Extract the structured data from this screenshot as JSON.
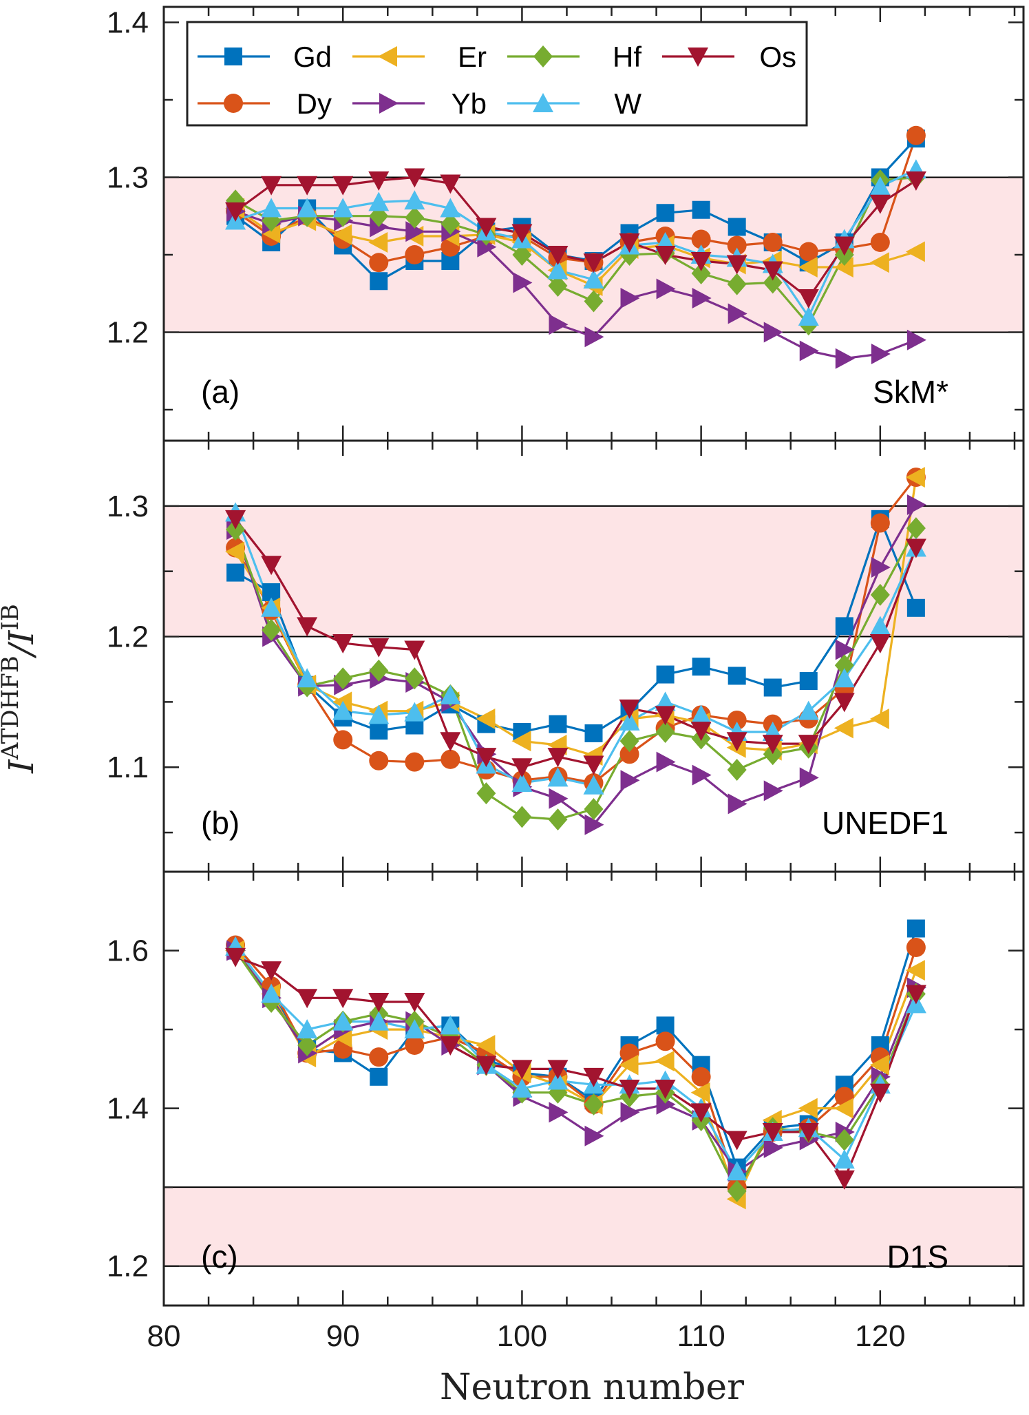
{
  "figure": {
    "xlabel": "Neutron number",
    "ylabel": {
      "numerator": "I",
      "numerator_sup": "ATDHFB",
      "slash": "/",
      "denominator": "I",
      "denominator_sup": "IB"
    }
  },
  "legend": [
    {
      "name": "Gd",
      "color": "#0072BD",
      "marker": "square"
    },
    {
      "name": "Dy",
      "color": "#D95319",
      "marker": "circle"
    },
    {
      "name": "Er",
      "color": "#EDB120",
      "marker": "triangle-left"
    },
    {
      "name": "Yb",
      "color": "#7E2F8E",
      "marker": "triangle-right"
    },
    {
      "name": "Hf",
      "color": "#77AC30",
      "marker": "diamond"
    },
    {
      "name": "W",
      "color": "#4DBEEE",
      "marker": "triangle-up"
    },
    {
      "name": "Os",
      "color": "#A2142F",
      "marker": "triangle-down"
    }
  ],
  "chart_data": [
    {
      "type": "line",
      "panel": "(a)",
      "label": "SkM*",
      "xlim": [
        80,
        128
      ],
      "ylim": [
        1.13,
        1.41
      ],
      "yticks": [
        1.2,
        1.3,
        1.4
      ],
      "ytick_labels": [
        "1.2",
        "1.3",
        "1.4"
      ],
      "band": [
        1.2,
        1.3
      ],
      "x": [
        84,
        86,
        88,
        90,
        92,
        94,
        96,
        98,
        100,
        102,
        104,
        106,
        108,
        110,
        112,
        114,
        116,
        118,
        120,
        122
      ],
      "series": [
        {
          "name": "Gd",
          "values": [
            1.275,
            1.258,
            1.28,
            1.256,
            1.233,
            1.246,
            1.246,
            1.265,
            1.268,
            1.25,
            1.246,
            1.264,
            1.277,
            1.279,
            1.268,
            1.258,
            1.245,
            1.258,
            1.3,
            1.325
          ]
        },
        {
          "name": "Dy",
          "values": [
            1.278,
            1.262,
            1.275,
            1.26,
            1.245,
            1.25,
            1.255,
            1.262,
            1.262,
            1.248,
            1.245,
            1.258,
            1.262,
            1.26,
            1.256,
            1.258,
            1.252,
            1.254,
            1.258,
            1.327
          ]
        },
        {
          "name": "Er",
          "values": [
            1.28,
            1.264,
            1.272,
            1.263,
            1.258,
            1.262,
            1.262,
            1.263,
            1.258,
            1.24,
            1.23,
            1.254,
            1.256,
            1.248,
            1.244,
            1.246,
            1.242,
            1.242,
            1.245,
            1.252
          ]
        },
        {
          "name": "Yb",
          "values": [
            1.278,
            1.27,
            1.275,
            1.272,
            1.268,
            1.265,
            1.265,
            1.255,
            1.232,
            1.205,
            1.197,
            1.222,
            1.228,
            1.222,
            1.212,
            1.2,
            1.188,
            1.183,
            1.186,
            1.195
          ]
        },
        {
          "name": "Hf",
          "values": [
            1.285,
            1.272,
            1.275,
            1.275,
            1.275,
            1.274,
            1.27,
            1.263,
            1.25,
            1.23,
            1.22,
            1.25,
            1.251,
            1.238,
            1.231,
            1.232,
            1.205,
            1.25,
            1.298,
            1.3
          ]
        },
        {
          "name": "W",
          "values": [
            1.272,
            1.28,
            1.28,
            1.28,
            1.284,
            1.285,
            1.28,
            1.265,
            1.26,
            1.24,
            1.234,
            1.256,
            1.258,
            1.25,
            1.248,
            1.244,
            1.21,
            1.26,
            1.294,
            1.305
          ]
        },
        {
          "name": "Os",
          "values": [
            1.278,
            1.295,
            1.295,
            1.295,
            1.298,
            1.3,
            1.296,
            1.268,
            1.264,
            1.25,
            1.245,
            1.258,
            1.25,
            1.246,
            1.244,
            1.24,
            1.222,
            1.256,
            1.283,
            1.298
          ]
        }
      ]
    },
    {
      "type": "line",
      "panel": "(b)",
      "label": "UNEDF1",
      "xlim": [
        80,
        128
      ],
      "ylim": [
        1.02,
        1.35
      ],
      "yticks": [
        1.1,
        1.2,
        1.3
      ],
      "ytick_labels": [
        "1.1",
        "1.2",
        "1.3"
      ],
      "band": [
        1.2,
        1.3
      ],
      "x": [
        84,
        86,
        88,
        90,
        92,
        94,
        96,
        98,
        100,
        102,
        104,
        106,
        108,
        110,
        112,
        114,
        116,
        118,
        120,
        122
      ],
      "series": [
        {
          "name": "Gd",
          "values": [
            1.249,
            1.234,
            1.163,
            1.138,
            1.128,
            1.132,
            1.148,
            1.133,
            1.127,
            1.133,
            1.126,
            1.143,
            1.171,
            1.177,
            1.17,
            1.161,
            1.166,
            1.208,
            1.29,
            1.222
          ]
        },
        {
          "name": "Dy",
          "values": [
            1.268,
            1.22,
            1.163,
            1.121,
            1.105,
            1.104,
            1.106,
            1.098,
            1.09,
            1.093,
            1.088,
            1.11,
            1.13,
            1.14,
            1.136,
            1.133,
            1.137,
            1.16,
            1.287,
            1.322
          ]
        },
        {
          "name": "Er",
          "values": [
            1.265,
            1.222,
            1.163,
            1.15,
            1.143,
            1.143,
            1.15,
            1.137,
            1.12,
            1.117,
            1.109,
            1.137,
            1.14,
            1.134,
            1.115,
            1.113,
            1.118,
            1.13,
            1.137,
            1.322
          ]
        },
        {
          "name": "Yb",
          "values": [
            1.282,
            1.2,
            1.162,
            1.163,
            1.168,
            1.165,
            1.15,
            1.11,
            1.085,
            1.076,
            1.056,
            1.09,
            1.104,
            1.094,
            1.072,
            1.082,
            1.092,
            1.19,
            1.253,
            1.301
          ]
        },
        {
          "name": "Hf",
          "values": [
            1.282,
            1.205,
            1.162,
            1.168,
            1.174,
            1.168,
            1.155,
            1.08,
            1.062,
            1.06,
            1.068,
            1.12,
            1.127,
            1.122,
            1.098,
            1.11,
            1.115,
            1.178,
            1.232,
            1.283
          ]
        },
        {
          "name": "W",
          "values": [
            1.295,
            1.222,
            1.168,
            1.143,
            1.14,
            1.142,
            1.155,
            1.102,
            1.088,
            1.092,
            1.086,
            1.135,
            1.15,
            1.14,
            1.127,
            1.127,
            1.143,
            1.168,
            1.208,
            1.268
          ]
        },
        {
          "name": "Os",
          "values": [
            1.29,
            1.255,
            1.208,
            1.195,
            1.192,
            1.19,
            1.12,
            1.108,
            1.1,
            1.108,
            1.102,
            1.145,
            1.14,
            1.128,
            1.12,
            1.118,
            1.118,
            1.15,
            1.195,
            1.268
          ]
        }
      ]
    },
    {
      "type": "line",
      "panel": "(c)",
      "label": "D1S",
      "xlim": [
        80,
        128
      ],
      "ylim": [
        1.15,
        1.7
      ],
      "yticks": [
        1.2,
        1.4,
        1.6
      ],
      "ytick_labels": [
        "1.2",
        "1.4",
        "1.6"
      ],
      "band": [
        1.2,
        1.3
      ],
      "x": [
        84,
        86,
        88,
        90,
        92,
        94,
        96,
        98,
        100,
        102,
        104,
        106,
        108,
        110,
        112,
        114,
        116,
        118,
        120,
        122
      ],
      "series": [
        {
          "name": "Gd",
          "values": [
            1.6,
            1.545,
            1.475,
            1.47,
            1.44,
            1.5,
            1.505,
            1.462,
            1.445,
            1.44,
            1.41,
            1.48,
            1.505,
            1.455,
            1.325,
            1.375,
            1.38,
            1.43,
            1.48,
            1.628
          ]
        },
        {
          "name": "Dy",
          "values": [
            1.607,
            1.555,
            1.47,
            1.475,
            1.465,
            1.48,
            1.49,
            1.47,
            1.44,
            1.44,
            1.405,
            1.47,
            1.485,
            1.44,
            1.3,
            1.37,
            1.375,
            1.415,
            1.465,
            1.604
          ]
        },
        {
          "name": "Er",
          "values": [
            1.6,
            1.545,
            1.465,
            1.49,
            1.5,
            1.5,
            1.49,
            1.48,
            1.445,
            1.43,
            1.405,
            1.455,
            1.46,
            1.42,
            1.285,
            1.385,
            1.4,
            1.4,
            1.455,
            1.575
          ]
        },
        {
          "name": "Yb",
          "values": [
            1.6,
            1.54,
            1.47,
            1.5,
            1.51,
            1.51,
            1.48,
            1.455,
            1.415,
            1.395,
            1.365,
            1.395,
            1.405,
            1.385,
            1.32,
            1.35,
            1.36,
            1.37,
            1.44,
            1.553
          ]
        },
        {
          "name": "Hf",
          "values": [
            1.6,
            1.535,
            1.48,
            1.51,
            1.52,
            1.51,
            1.49,
            1.455,
            1.42,
            1.42,
            1.405,
            1.415,
            1.42,
            1.385,
            1.295,
            1.375,
            1.37,
            1.36,
            1.43,
            1.545
          ]
        },
        {
          "name": "W",
          "values": [
            1.605,
            1.545,
            1.5,
            1.51,
            1.51,
            1.5,
            1.505,
            1.455,
            1.425,
            1.435,
            1.43,
            1.43,
            1.435,
            1.4,
            1.32,
            1.37,
            1.375,
            1.335,
            1.43,
            1.532
          ]
        },
        {
          "name": "Os",
          "values": [
            1.592,
            1.575,
            1.54,
            1.54,
            1.535,
            1.535,
            1.48,
            1.455,
            1.45,
            1.45,
            1.44,
            1.425,
            1.425,
            1.395,
            1.36,
            1.37,
            1.37,
            1.31,
            1.42,
            1.545
          ]
        }
      ]
    }
  ],
  "xaxis": {
    "ticks": [
      80,
      90,
      100,
      110,
      120
    ],
    "tick_labels": [
      "80",
      "90",
      "100",
      "110",
      "120"
    ]
  }
}
